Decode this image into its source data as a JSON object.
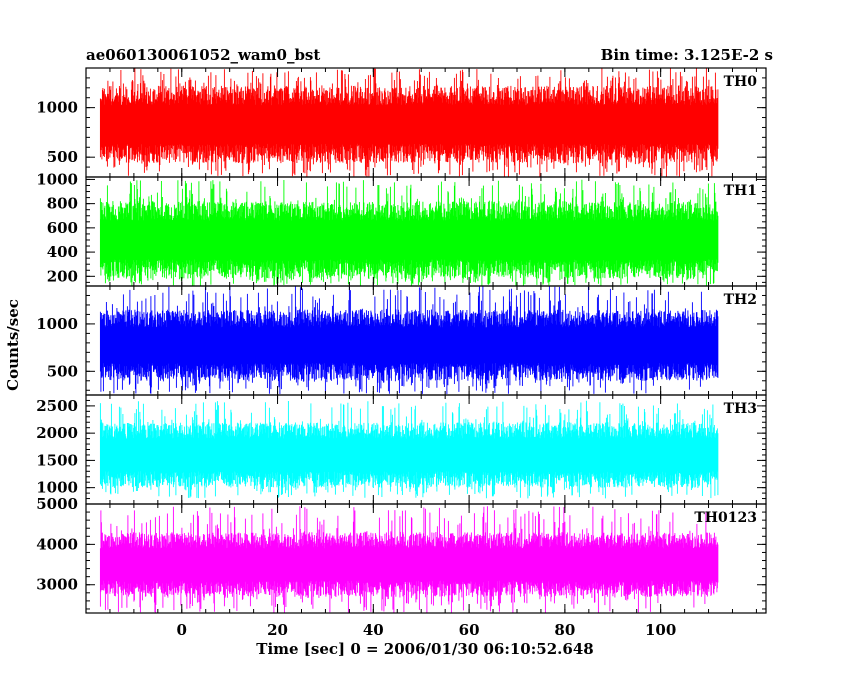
{
  "chart_data": {
    "type": "line",
    "title_left": "ae060130061052_wam0_bst",
    "title_right": "Bin time: 3.125E-2 s",
    "xlabel": "Time [sec] 0 = 2006/01/30 06:10:52.648",
    "ylabel": "Counts/sec",
    "xlim": [
      -20,
      122
    ],
    "x_data_range": [
      -17,
      112
    ],
    "x_ticks": [
      0,
      20,
      40,
      60,
      80,
      100
    ],
    "x_minor_step": 5,
    "grid": false,
    "panels": [
      {
        "name": "TH0",
        "color": "#ff0000",
        "ylim": [
          300,
          1400
        ],
        "y_ticks": [
          500,
          1000
        ],
        "y_minor_step": 100,
        "band": {
          "low": 440,
          "high": 1220,
          "min": 300,
          "max": 1400
        }
      },
      {
        "name": "TH1",
        "color": "#00ff00",
        "ylim": [
          120,
          1020
        ],
        "y_ticks": [
          200,
          400,
          600,
          800,
          1000
        ],
        "y_minor_step": 50,
        "band": {
          "low": 180,
          "high": 820,
          "min": 120,
          "max": 1000
        }
      },
      {
        "name": "TH2",
        "color": "#0000ff",
        "ylim": [
          250,
          1400
        ],
        "y_ticks": [
          500,
          1000
        ],
        "y_minor_step": 100,
        "band": {
          "low": 400,
          "high": 1150,
          "min": 260,
          "max": 1400
        }
      },
      {
        "name": "TH3",
        "color": "#00ffff",
        "ylim": [
          700,
          2700
        ],
        "y_ticks": [
          1000,
          1500,
          2000,
          2500
        ],
        "y_minor_step": 100,
        "band": {
          "low": 1000,
          "high": 2200,
          "min": 800,
          "max": 2600
        }
      },
      {
        "name": "TH0123",
        "color": "#ff00ff",
        "ylim": [
          2300,
          5000
        ],
        "y_ticks": [
          3000,
          4000,
          5000
        ],
        "y_minor_step": 200,
        "band": {
          "low": 2700,
          "high": 4300,
          "min": 2300,
          "max": 4950
        }
      }
    ]
  }
}
